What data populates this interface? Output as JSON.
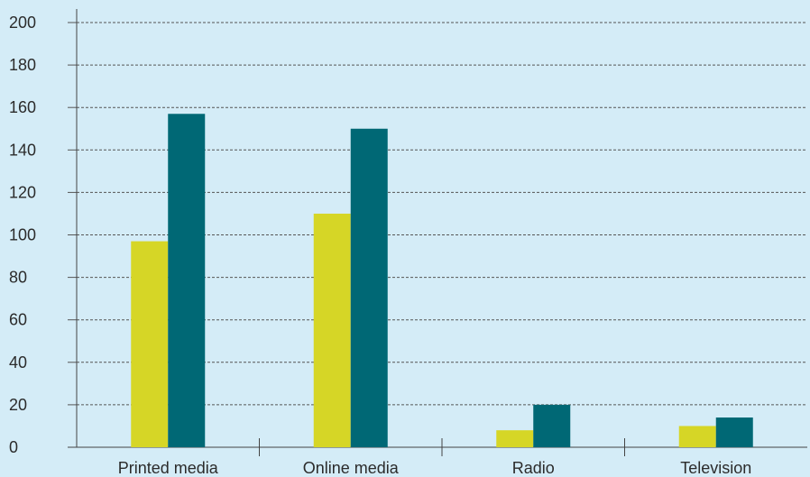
{
  "chart_data": {
    "type": "bar",
    "categories": [
      "Printed media",
      "Online media",
      "Radio",
      "Television"
    ],
    "series": [
      {
        "values": [
          97,
          110,
          8,
          10
        ],
        "color": "#d6d626"
      },
      {
        "values": [
          157,
          150,
          20,
          14
        ],
        "color": "#006875"
      }
    ],
    "y_ticks": [
      "0",
      "20",
      "40",
      "60",
      "80",
      "100",
      "120",
      "140",
      "160",
      "180",
      "200"
    ],
    "ylim": [
      0,
      200
    ],
    "grid": true,
    "grid_style": "dashed",
    "legend": "none",
    "background": "#d4ecf7"
  }
}
